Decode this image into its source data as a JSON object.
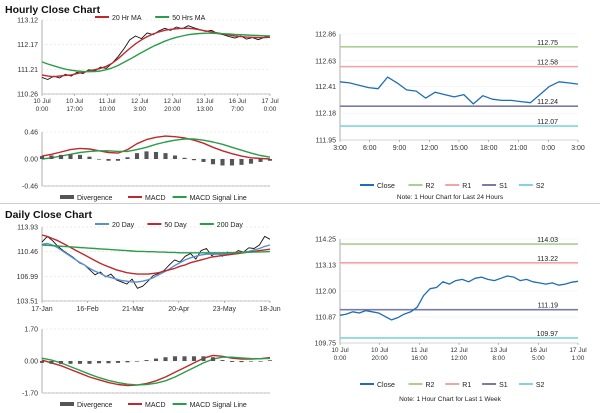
{
  "sections": {
    "hourly_title": "Hourly Close Chart",
    "daily_title": "Daily Close Chart",
    "hourly_note": "Note: 1 Hour Chart for Last 24 Hours",
    "daily_note": "Note: 1 Hour Chart for Last 1 Week"
  },
  "colors": {
    "price": "#111111",
    "ma_short": "#c0282d",
    "ma_long": "#2a9d4a",
    "ma_mid": "#5a8fd0",
    "close": "#1f6db5",
    "r2": "#a9d08e",
    "r1": "#f2a3a3",
    "s1": "#7a7aa8",
    "s2": "#7fd4e0",
    "divergence": "#555555",
    "grid": "#d9d9d9",
    "axis": "#777777"
  },
  "chart_data": [
    {
      "id": "hourly-price",
      "type": "line",
      "ylim": [
        110.26,
        113.12
      ],
      "yticks": [
        "113.12",
        "112.17",
        "111.21",
        "110.26"
      ],
      "ytick_values": [
        113.12,
        112.17,
        111.21,
        110.26
      ],
      "xticks": [
        [
          "10 Jul",
          "0:00"
        ],
        [
          "10 Jul",
          "17:00"
        ],
        [
          "11 Jul",
          "10:00"
        ],
        [
          "12 Jul",
          "3:00"
        ],
        [
          "12 Jul",
          "20:00"
        ],
        [
          "13 Jul",
          "13:00"
        ],
        [
          "16 Jul",
          "7:00"
        ],
        [
          "17 Jul",
          "0:00"
        ]
      ],
      "legend": [
        "20 Hr MA",
        "50 Hrs MA"
      ],
      "series": [
        {
          "name": "Price",
          "values": [
            110.9,
            110.82,
            110.95,
            110.88,
            111.02,
            110.95,
            111.1,
            111.05,
            111.2,
            111.15,
            111.3,
            111.25,
            111.45,
            111.7,
            112.0,
            112.35,
            112.5,
            112.4,
            112.62,
            112.55,
            112.7,
            112.8,
            112.72,
            112.85,
            112.78,
            112.9,
            112.82,
            112.75,
            112.68,
            112.72,
            112.6,
            112.55,
            112.48,
            112.42,
            112.5,
            112.38,
            112.44,
            112.36,
            112.45,
            112.5
          ]
        },
        {
          "name": "20 Hr MA",
          "values": [
            111.0,
            110.95,
            110.93,
            110.95,
            110.98,
            111.0,
            111.05,
            111.1,
            111.15,
            111.2,
            111.25,
            111.33,
            111.45,
            111.62,
            111.82,
            112.02,
            112.2,
            112.35,
            112.48,
            112.58,
            112.66,
            112.72,
            112.76,
            112.78,
            112.8,
            112.8,
            112.78,
            112.74,
            112.7,
            112.66,
            112.62,
            112.58,
            112.54,
            112.5,
            112.48,
            112.46,
            112.45,
            112.44,
            112.44,
            112.45
          ]
        },
        {
          "name": "50 Hrs MA",
          "values": [
            111.5,
            111.42,
            111.35,
            111.28,
            111.22,
            111.18,
            111.15,
            111.13,
            111.12,
            111.13,
            111.15,
            111.2,
            111.27,
            111.36,
            111.48,
            111.6,
            111.73,
            111.86,
            111.98,
            112.1,
            112.2,
            112.3,
            112.38,
            112.45,
            112.5,
            112.55,
            112.58,
            112.6,
            112.61,
            112.61,
            112.6,
            112.59,
            112.58,
            112.56,
            112.55,
            112.54,
            112.53,
            112.52,
            112.51,
            112.5
          ]
        }
      ]
    },
    {
      "id": "hourly-macd",
      "type": "line",
      "ylim": [
        -0.46,
        0.46
      ],
      "yticks": [
        "0.46",
        "0.00",
        "-0.46"
      ],
      "ytick_values": [
        0.46,
        0.0,
        -0.46
      ],
      "legend": [
        "Divergence",
        "MACD",
        "MACD Signal Line"
      ],
      "series": [
        {
          "name": "MACD",
          "values": [
            0.05,
            0.08,
            0.12,
            0.16,
            0.18,
            0.17,
            0.14,
            0.11,
            0.1,
            0.16,
            0.26,
            0.33,
            0.37,
            0.39,
            0.38,
            0.36,
            0.32,
            0.27,
            0.2,
            0.14,
            0.09,
            0.05,
            0.02,
            0.01,
            0.0
          ]
        },
        {
          "name": "MACD Signal Line",
          "values": [
            0.0,
            0.02,
            0.05,
            0.08,
            0.11,
            0.13,
            0.14,
            0.14,
            0.13,
            0.13,
            0.16,
            0.2,
            0.25,
            0.29,
            0.32,
            0.34,
            0.34,
            0.32,
            0.29,
            0.25,
            0.2,
            0.15,
            0.1,
            0.06,
            0.03
          ]
        },
        {
          "name": "Divergence",
          "values": [
            0.05,
            0.06,
            0.07,
            0.08,
            0.07,
            0.04,
            0.0,
            -0.03,
            -0.03,
            0.03,
            0.1,
            0.13,
            0.12,
            0.1,
            0.06,
            0.02,
            -0.02,
            -0.05,
            -0.09,
            -0.11,
            -0.11,
            -0.1,
            -0.08,
            -0.05,
            -0.03
          ]
        }
      ]
    },
    {
      "id": "hourly-close",
      "type": "line",
      "ylim": [
        111.95,
        112.86
      ],
      "yticks": [
        "112.86",
        "112.63",
        "112.41",
        "112.18",
        "111.95"
      ],
      "ytick_values": [
        112.86,
        112.63,
        112.41,
        112.18,
        111.95
      ],
      "xticks": [
        "3:00",
        "6:00",
        "9:00",
        "12:00",
        "15:00",
        "18:00",
        "21:00",
        "0:00",
        "3:00"
      ],
      "levels": [
        {
          "name": "R2",
          "value": 112.75,
          "label": "112.75"
        },
        {
          "name": "R1",
          "value": 112.58,
          "label": "112.58"
        },
        {
          "name": "S1",
          "value": 112.24,
          "label": "112.24"
        },
        {
          "name": "S2",
          "value": 112.07,
          "label": "112.07"
        }
      ],
      "legend": [
        "Close",
        "R2",
        "R1",
        "S1",
        "S2"
      ],
      "series": [
        {
          "name": "Close",
          "values": [
            112.45,
            112.44,
            112.42,
            112.4,
            112.39,
            112.49,
            112.44,
            112.38,
            112.37,
            112.31,
            112.36,
            112.34,
            112.32,
            112.34,
            112.26,
            112.33,
            112.3,
            112.29,
            112.29,
            112.28,
            112.27,
            112.34,
            112.41,
            112.45,
            112.44,
            112.43
          ]
        }
      ]
    },
    {
      "id": "daily-price",
      "type": "line",
      "ylim": [
        103.51,
        113.93
      ],
      "yticks": [
        "113.93",
        "110.46",
        "106.99",
        "103.51"
      ],
      "ytick_values": [
        113.93,
        110.46,
        106.99,
        103.51
      ],
      "xticks": [
        "17-Jan",
        "16-Feb",
        "21-Mar",
        "20-Apr",
        "23-May",
        "18-Jun"
      ],
      "legend": [
        "20 Day",
        "50 Day",
        "200 Day"
      ],
      "series": [
        {
          "name": "Price",
          "values": [
            111.8,
            112.6,
            112.0,
            111.2,
            110.6,
            110.1,
            109.6,
            108.9,
            108.6,
            107.9,
            107.2,
            107.6,
            106.9,
            107.3,
            106.5,
            106.2,
            105.9,
            106.6,
            105.3,
            105.6,
            106.3,
            107.1,
            107.4,
            107.8,
            108.6,
            109.3,
            109.0,
            109.8,
            110.2,
            109.4,
            110.6,
            110.9,
            109.9,
            110.3,
            109.8,
            110.4,
            110.1,
            110.6,
            110.4,
            111.0,
            110.9,
            111.4,
            112.6,
            112.2
          ]
        },
        {
          "name": "20 Day",
          "values": [
            111.5,
            111.6,
            111.4,
            111.0,
            110.5,
            110.0,
            109.5,
            109.0,
            108.6,
            108.1,
            107.7,
            107.4,
            107.0,
            106.8,
            106.6,
            106.4,
            106.3,
            106.2,
            106.2,
            106.3,
            106.5,
            106.8,
            107.2,
            107.6,
            108.0,
            108.5,
            108.9,
            109.3,
            109.6,
            109.8,
            110.0,
            110.1,
            110.1,
            110.1,
            110.1,
            110.1,
            110.2,
            110.3,
            110.4,
            110.5,
            110.7,
            110.9,
            111.2,
            111.4
          ]
        },
        {
          "name": "50 Day",
          "values": [
            112.8,
            112.6,
            112.3,
            112.0,
            111.6,
            111.2,
            110.8,
            110.4,
            110.0,
            109.6,
            109.2,
            108.8,
            108.5,
            108.2,
            107.9,
            107.7,
            107.5,
            107.4,
            107.3,
            107.3,
            107.3,
            107.4,
            107.5,
            107.7,
            107.9,
            108.1,
            108.4,
            108.6,
            108.9,
            109.1,
            109.3,
            109.5,
            109.7,
            109.8,
            109.9,
            110.0,
            110.1,
            110.2,
            110.3,
            110.4,
            110.5,
            110.6,
            110.7,
            110.8
          ]
        },
        {
          "name": "200 Day",
          "values": [
            111.4,
            111.35,
            111.3,
            111.25,
            111.2,
            111.15,
            111.1,
            111.05,
            111.0,
            110.95,
            110.9,
            110.85,
            110.8,
            110.75,
            110.7,
            110.65,
            110.6,
            110.55,
            110.5,
            110.5,
            110.45,
            110.45,
            110.4,
            110.4,
            110.35,
            110.35,
            110.3,
            110.3,
            110.3,
            110.3,
            110.3,
            110.3,
            110.3,
            110.3,
            110.3,
            110.3,
            110.32,
            110.34,
            110.36,
            110.38,
            110.4,
            110.42,
            110.44,
            110.46
          ]
        }
      ]
    },
    {
      "id": "daily-macd",
      "type": "line",
      "ylim": [
        -1.7,
        1.7
      ],
      "yticks": [
        "1.70",
        "0.00",
        "-1.70"
      ],
      "ytick_values": [
        1.7,
        0.0,
        -1.7
      ],
      "legend": [
        "Divergence",
        "MACD",
        "MACD Signal Line"
      ],
      "series": [
        {
          "name": "MACD",
          "values": [
            0.05,
            -0.1,
            -0.25,
            -0.45,
            -0.65,
            -0.85,
            -1.0,
            -1.15,
            -1.25,
            -1.3,
            -1.28,
            -1.2,
            -1.05,
            -0.85,
            -0.6,
            -0.35,
            -0.1,
            0.15,
            0.3,
            0.25,
            0.15,
            0.1,
            0.1,
            0.12,
            0.18
          ]
        },
        {
          "name": "MACD Signal Line",
          "values": [
            0.15,
            0.05,
            -0.1,
            -0.3,
            -0.5,
            -0.7,
            -0.88,
            -1.03,
            -1.15,
            -1.23,
            -1.27,
            -1.25,
            -1.18,
            -1.05,
            -0.85,
            -0.6,
            -0.35,
            -0.1,
            0.1,
            0.2,
            0.2,
            0.16,
            0.13,
            0.12,
            0.14
          ]
        },
        {
          "name": "Divergence",
          "values": [
            -0.1,
            -0.15,
            -0.15,
            -0.15,
            -0.15,
            -0.15,
            -0.12,
            -0.12,
            -0.1,
            -0.07,
            -0.01,
            0.05,
            0.13,
            0.2,
            0.25,
            0.25,
            0.25,
            0.25,
            0.2,
            0.05,
            -0.05,
            -0.06,
            -0.03,
            0.0,
            0.04
          ]
        }
      ]
    },
    {
      "id": "weekly-close",
      "type": "line",
      "ylim": [
        109.75,
        114.25
      ],
      "yticks": [
        "114.25",
        "113.13",
        "112.00",
        "110.87",
        "109.75"
      ],
      "ytick_values": [
        114.25,
        113.13,
        112.0,
        110.87,
        109.75
      ],
      "xticks": [
        [
          "10 Jul",
          "0:00"
        ],
        [
          "10 Jul",
          "20:00"
        ],
        [
          "11 Jul",
          "16:00"
        ],
        [
          "12 Jul",
          "12:00"
        ],
        [
          "13 Jul",
          "8:00"
        ],
        [
          "16 Jul",
          "5:00"
        ],
        [
          "17 Jul",
          "1:00"
        ]
      ],
      "levels": [
        {
          "name": "R2",
          "value": 114.03,
          "label": "114.03"
        },
        {
          "name": "R1",
          "value": 113.22,
          "label": "113.22"
        },
        {
          "name": "S1",
          "value": 111.19,
          "label": "111.19"
        },
        {
          "name": "S2",
          "value": 109.97,
          "label": "109.97"
        }
      ],
      "legend": [
        "Close",
        "R2",
        "R1",
        "S1",
        "S2"
      ],
      "series": [
        {
          "name": "Close",
          "values": [
            110.95,
            111.0,
            111.1,
            111.05,
            111.15,
            111.1,
            111.05,
            110.9,
            110.75,
            110.85,
            111.0,
            111.1,
            111.3,
            111.8,
            112.1,
            112.15,
            112.4,
            112.3,
            112.45,
            112.5,
            112.4,
            112.55,
            112.6,
            112.5,
            112.45,
            112.55,
            112.65,
            112.6,
            112.45,
            112.5,
            112.4,
            112.35,
            112.3,
            112.35,
            112.25,
            112.3,
            112.38,
            112.42
          ]
        }
      ]
    }
  ]
}
